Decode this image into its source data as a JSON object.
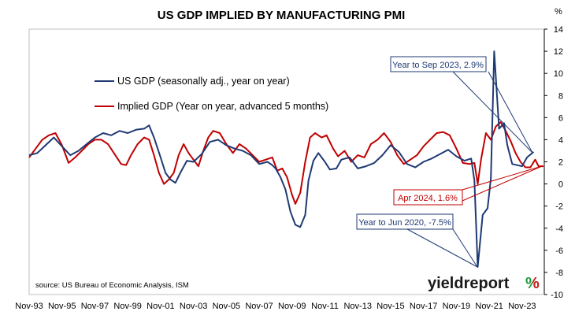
{
  "chart_data": {
    "type": "line",
    "title": "US GDP IMPLIED BY MANUFACTURING PMI",
    "y_unit": "%",
    "ylim": [
      -10,
      14
    ],
    "y_ticks": [
      14,
      12,
      10,
      8,
      6,
      4,
      2,
      0,
      -2,
      -4,
      -6,
      -8,
      -10
    ],
    "x_ticks": [
      "Nov-93",
      "Nov-95",
      "Nov-97",
      "Nov-99",
      "Nov-01",
      "Nov-03",
      "Nov-05",
      "Nov-07",
      "Nov-09",
      "Nov-11",
      "Nov-13",
      "Nov-15",
      "Nov-17",
      "Nov-19",
      "Nov-21",
      "Nov-23"
    ],
    "legend_position": "top-left",
    "grid": false,
    "series": [
      {
        "name": "US GDP (seasonally adj., year on year)",
        "color": "#1f3a73",
        "points": [
          [
            1993.0,
            2.6
          ],
          [
            1993.5,
            2.8
          ],
          [
            1994.0,
            3.5
          ],
          [
            1994.5,
            4.2
          ],
          [
            1995.0,
            3.4
          ],
          [
            1995.5,
            2.6
          ],
          [
            1996.0,
            3.0
          ],
          [
            1996.5,
            3.6
          ],
          [
            1997.0,
            4.2
          ],
          [
            1997.5,
            4.6
          ],
          [
            1998.0,
            4.4
          ],
          [
            1998.5,
            4.8
          ],
          [
            1999.0,
            4.6
          ],
          [
            1999.5,
            4.9
          ],
          [
            2000.0,
            5.0
          ],
          [
            2000.3,
            5.3
          ],
          [
            2000.6,
            4.2
          ],
          [
            2001.0,
            2.4
          ],
          [
            2001.3,
            1.0
          ],
          [
            2001.6,
            0.4
          ],
          [
            2001.9,
            0.1
          ],
          [
            2002.2,
            1.0
          ],
          [
            2002.6,
            2.1
          ],
          [
            2003.0,
            2.0
          ],
          [
            2003.5,
            2.7
          ],
          [
            2004.0,
            3.8
          ],
          [
            2004.5,
            4.0
          ],
          [
            2005.0,
            3.5
          ],
          [
            2005.5,
            3.2
          ],
          [
            2006.0,
            3.0
          ],
          [
            2006.5,
            2.6
          ],
          [
            2007.0,
            1.8
          ],
          [
            2007.5,
            2.0
          ],
          [
            2007.8,
            1.7
          ],
          [
            2008.0,
            1.4
          ],
          [
            2008.3,
            0.6
          ],
          [
            2008.6,
            -0.5
          ],
          [
            2008.9,
            -2.5
          ],
          [
            2009.2,
            -3.7
          ],
          [
            2009.5,
            -3.9
          ],
          [
            2009.8,
            -2.8
          ],
          [
            2010.0,
            0.3
          ],
          [
            2010.3,
            2.1
          ],
          [
            2010.6,
            2.8
          ],
          [
            2011.0,
            2.0
          ],
          [
            2011.3,
            1.3
          ],
          [
            2011.7,
            1.4
          ],
          [
            2012.0,
            2.2
          ],
          [
            2012.5,
            2.4
          ],
          [
            2013.0,
            1.4
          ],
          [
            2013.5,
            1.6
          ],
          [
            2014.0,
            1.9
          ],
          [
            2014.5,
            2.6
          ],
          [
            2015.0,
            3.5
          ],
          [
            2015.5,
            2.9
          ],
          [
            2016.0,
            1.8
          ],
          [
            2016.5,
            1.5
          ],
          [
            2017.0,
            2.0
          ],
          [
            2017.5,
            2.3
          ],
          [
            2018.0,
            2.7
          ],
          [
            2018.5,
            3.1
          ],
          [
            2019.0,
            2.5
          ],
          [
            2019.5,
            2.1
          ],
          [
            2019.9,
            2.3
          ],
          [
            2020.1,
            0.3
          ],
          [
            2020.3,
            -7.5
          ],
          [
            2020.6,
            -2.8
          ],
          [
            2020.9,
            -2.2
          ],
          [
            2021.1,
            0.5
          ],
          [
            2021.3,
            12.0
          ],
          [
            2021.6,
            5.0
          ],
          [
            2021.9,
            5.5
          ],
          [
            2022.1,
            3.5
          ],
          [
            2022.4,
            1.8
          ],
          [
            2022.7,
            1.7
          ],
          [
            2023.0,
            1.6
          ],
          [
            2023.3,
            2.4
          ],
          [
            2023.7,
            2.9
          ]
        ]
      },
      {
        "name": "Implied GDP (Year on year, advanced 5 months)",
        "color": "#c00000",
        "points": [
          [
            1993.0,
            2.4
          ],
          [
            1993.4,
            3.2
          ],
          [
            1993.8,
            4.0
          ],
          [
            1994.2,
            4.4
          ],
          [
            1994.6,
            4.6
          ],
          [
            1995.0,
            3.5
          ],
          [
            1995.4,
            1.9
          ],
          [
            1995.8,
            2.4
          ],
          [
            1996.2,
            3.0
          ],
          [
            1996.6,
            3.6
          ],
          [
            1997.0,
            4.0
          ],
          [
            1997.4,
            4.0
          ],
          [
            1997.8,
            3.6
          ],
          [
            1998.2,
            2.7
          ],
          [
            1998.6,
            1.8
          ],
          [
            1998.9,
            1.7
          ],
          [
            1999.2,
            2.6
          ],
          [
            1999.6,
            3.6
          ],
          [
            2000.0,
            4.2
          ],
          [
            2000.3,
            4.0
          ],
          [
            2000.6,
            2.6
          ],
          [
            2000.9,
            1.0
          ],
          [
            2001.2,
            0.0
          ],
          [
            2001.5,
            0.4
          ],
          [
            2001.8,
            1.0
          ],
          [
            2002.1,
            2.6
          ],
          [
            2002.4,
            3.6
          ],
          [
            2002.7,
            2.8
          ],
          [
            2003.0,
            2.2
          ],
          [
            2003.3,
            1.6
          ],
          [
            2003.6,
            3.0
          ],
          [
            2003.9,
            4.2
          ],
          [
            2004.2,
            4.8
          ],
          [
            2004.6,
            4.6
          ],
          [
            2005.0,
            3.6
          ],
          [
            2005.4,
            2.8
          ],
          [
            2005.8,
            3.6
          ],
          [
            2006.2,
            3.2
          ],
          [
            2006.6,
            2.6
          ],
          [
            2007.0,
            2.0
          ],
          [
            2007.4,
            2.2
          ],
          [
            2007.8,
            2.4
          ],
          [
            2008.1,
            1.2
          ],
          [
            2008.4,
            1.4
          ],
          [
            2008.7,
            0.6
          ],
          [
            2009.0,
            -1.0
          ],
          [
            2009.2,
            -1.8
          ],
          [
            2009.5,
            -0.8
          ],
          [
            2009.8,
            2.0
          ],
          [
            2010.1,
            4.2
          ],
          [
            2010.4,
            4.6
          ],
          [
            2010.8,
            4.2
          ],
          [
            2011.1,
            4.4
          ],
          [
            2011.5,
            3.2
          ],
          [
            2011.8,
            2.5
          ],
          [
            2012.2,
            3.0
          ],
          [
            2012.6,
            2.0
          ],
          [
            2013.0,
            2.6
          ],
          [
            2013.4,
            2.4
          ],
          [
            2013.8,
            3.6
          ],
          [
            2014.2,
            4.0
          ],
          [
            2014.6,
            4.6
          ],
          [
            2015.0,
            3.8
          ],
          [
            2015.4,
            2.6
          ],
          [
            2015.8,
            1.8
          ],
          [
            2016.2,
            2.2
          ],
          [
            2016.6,
            2.6
          ],
          [
            2017.0,
            3.4
          ],
          [
            2017.4,
            4.0
          ],
          [
            2017.8,
            4.6
          ],
          [
            2018.2,
            4.7
          ],
          [
            2018.6,
            4.4
          ],
          [
            2019.0,
            3.2
          ],
          [
            2019.4,
            1.9
          ],
          [
            2019.8,
            1.8
          ],
          [
            2020.1,
            1.9
          ],
          [
            2020.3,
            0.0
          ],
          [
            2020.5,
            2.2
          ],
          [
            2020.8,
            4.6
          ],
          [
            2021.1,
            4.0
          ],
          [
            2021.4,
            5.2
          ],
          [
            2021.7,
            5.6
          ],
          [
            2022.0,
            4.8
          ],
          [
            2022.3,
            3.9
          ],
          [
            2022.6,
            2.8
          ],
          [
            2022.9,
            2.0
          ],
          [
            2023.2,
            1.5
          ],
          [
            2023.5,
            1.5
          ],
          [
            2023.8,
            2.2
          ],
          [
            2024.0,
            1.6
          ],
          [
            2024.3,
            1.6
          ]
        ]
      }
    ],
    "annotations": [
      {
        "text": "Year to Sep 2023, 2.9%",
        "color": "#1f3a73"
      },
      {
        "text": "Apr 2024, 1.6%",
        "color": "#c00000"
      },
      {
        "text": "Year to Jun 2020, -7.5%",
        "color": "#1f3a73"
      }
    ],
    "source": "source: US Bureau of Economic Analysis, ISM",
    "brand": {
      "text_main": "yieldreport",
      "text_pct": "%",
      "color_main": "#1a1a1a",
      "color_pct_green": "#1a9a3a",
      "color_pct_red": "#d02020"
    }
  }
}
